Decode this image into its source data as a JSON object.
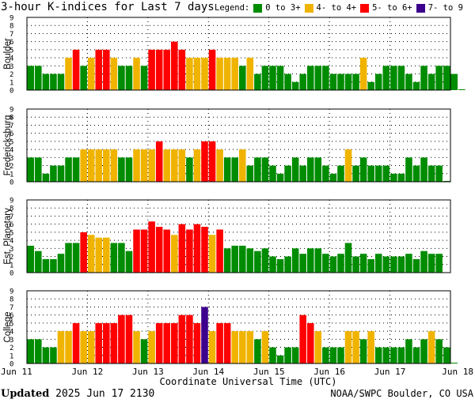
{
  "title": "3-hour K-indices for Last 7 days",
  "legend": {
    "label": "Legend:",
    "items": [
      {
        "label": "0 to 3+",
        "color": "#008c00"
      },
      {
        "label": "4- to 4+",
        "color": "#f0b400"
      },
      {
        "label": "5- to 6+",
        "color": "#ff0000"
      },
      {
        "label": "7- to 9",
        "color": "#3c008c"
      }
    ]
  },
  "footer": {
    "updated_label": "Updated",
    "updated_value": "2025 Jun 17 2130",
    "source": "NOAA/SWPC Boulder, CO USA"
  },
  "chart_data": {
    "type": "bar",
    "xlabel": "Coordinate Universal Time (UTC)",
    "x_tick_labels": [
      "Jun 11",
      "Jun 12",
      "Jun 13",
      "Jun 14",
      "Jun 15",
      "Jun 16",
      "Jun 17",
      "Jun 18"
    ],
    "y_tick_labels": [
      "0",
      "1",
      "2",
      "3",
      "4",
      "5",
      "6",
      "7",
      "8",
      "9"
    ],
    "ylim": [
      0,
      9
    ],
    "bars_per_day": 8,
    "grid": "dotted",
    "color_scale": [
      {
        "max": 3.99,
        "color": "#008c00"
      },
      {
        "max": 4.99,
        "color": "#f0b400"
      },
      {
        "max": 6.99,
        "color": "#ff0000"
      },
      {
        "max": 9,
        "color": "#3c008c"
      }
    ],
    "series": [
      {
        "name": "Boulder",
        "values": [
          3,
          3,
          2,
          2,
          2,
          4,
          5,
          3,
          4,
          5,
          5,
          4,
          3,
          3,
          4,
          3,
          5,
          5,
          5,
          6,
          5,
          4,
          4,
          4,
          5,
          4,
          4,
          4,
          3,
          4,
          2,
          3,
          3,
          3,
          2,
          1,
          2,
          3,
          3,
          3,
          2,
          2,
          2,
          2,
          4,
          1,
          2,
          3,
          3,
          3,
          2,
          1,
          3,
          2,
          3,
          3,
          2,
          0.1
        ]
      },
      {
        "name": "Fredericksburg",
        "values": [
          3,
          3,
          1,
          2,
          2,
          3,
          3,
          4,
          4,
          4,
          4,
          4,
          3,
          3,
          4,
          4,
          4,
          5,
          4,
          4,
          4,
          3,
          4,
          5,
          5,
          4,
          3,
          3,
          4,
          2,
          3,
          3,
          2,
          1,
          2,
          3,
          2,
          3,
          3,
          2,
          1,
          2,
          4,
          2,
          3,
          2,
          2,
          2,
          1,
          1,
          3,
          2,
          3,
          2,
          2,
          0.1
        ]
      },
      {
        "name": "Est. Planetary",
        "values": [
          3.33,
          2.67,
          1.67,
          1.67,
          2.33,
          3.67,
          3.67,
          5,
          4.67,
          4.33,
          4.33,
          3.67,
          3.67,
          2.67,
          5.33,
          5.33,
          6.33,
          5.67,
          5.33,
          4.67,
          6,
          5.33,
          6,
          5.67,
          4.67,
          5.33,
          3,
          3.33,
          3.33,
          3,
          2.67,
          3,
          2,
          1.67,
          2,
          3,
          2.33,
          3,
          3,
          2.33,
          2,
          2.33,
          3.67,
          2,
          2.33,
          1.67,
          2.33,
          2,
          2,
          2,
          2.33,
          1.67,
          2.67,
          2.33,
          2.33
        ]
      },
      {
        "name": "College",
        "values": [
          3,
          3,
          2,
          2,
          4,
          4,
          5,
          4,
          4,
          5,
          5,
          5,
          6,
          6,
          4,
          3,
          4,
          5,
          5,
          5,
          6,
          6,
          5,
          7,
          4,
          5,
          5,
          4,
          4,
          4,
          3,
          4,
          2,
          1,
          2,
          2,
          6,
          5,
          4,
          2,
          2,
          2,
          4,
          4,
          3,
          4,
          2,
          2,
          2,
          2,
          3,
          2,
          3,
          4,
          3,
          2,
          0.1
        ]
      }
    ]
  }
}
